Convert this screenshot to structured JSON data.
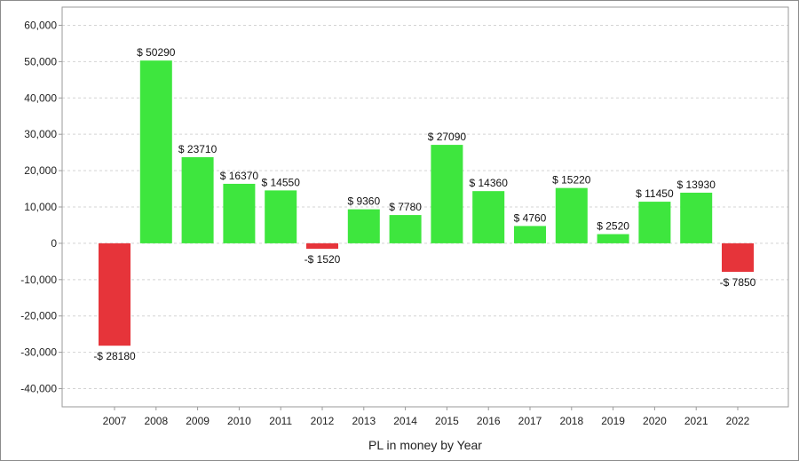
{
  "chart_data": {
    "type": "bar",
    "xlabel": "PL in money by Year",
    "ylabel": "",
    "ylim": [
      -45000,
      65000
    ],
    "yticks": [
      60000,
      50000,
      40000,
      30000,
      20000,
      10000,
      0,
      -10000,
      -20000,
      -30000,
      -40000
    ],
    "ytick_labels": [
      "60,000",
      "50,000",
      "40,000",
      "30,000",
      "20,000",
      "10,000",
      "0",
      "-10,000",
      "-20,000",
      "-30,000",
      "-40,000"
    ],
    "categories": [
      "2007",
      "2008",
      "2009",
      "2010",
      "2011",
      "2012",
      "2013",
      "2014",
      "2015",
      "2016",
      "2017",
      "2018",
      "2019",
      "2020",
      "2021",
      "2022"
    ],
    "values": [
      -28180,
      50290,
      23710,
      16370,
      14550,
      -1520,
      9360,
      7780,
      27090,
      14360,
      4760,
      15220,
      2520,
      11450,
      13930,
      -7850
    ],
    "data_labels": [
      "-$ 28180",
      "$ 50290",
      "$ 23710",
      "$ 16370",
      "$ 14550",
      "-$ 1520",
      "$ 9360",
      "$ 7780",
      "$ 27090",
      "$ 14360",
      "$ 4760",
      "$ 15220",
      "$ 2520",
      "$ 11450",
      "$ 13930",
      "-$ 7850"
    ],
    "grid": true,
    "legend": "none",
    "colors": {
      "positive": "#3ee63e",
      "negative": "#e6343a",
      "grid": "#d4d4d4",
      "axis": "#9a9a9a"
    }
  }
}
